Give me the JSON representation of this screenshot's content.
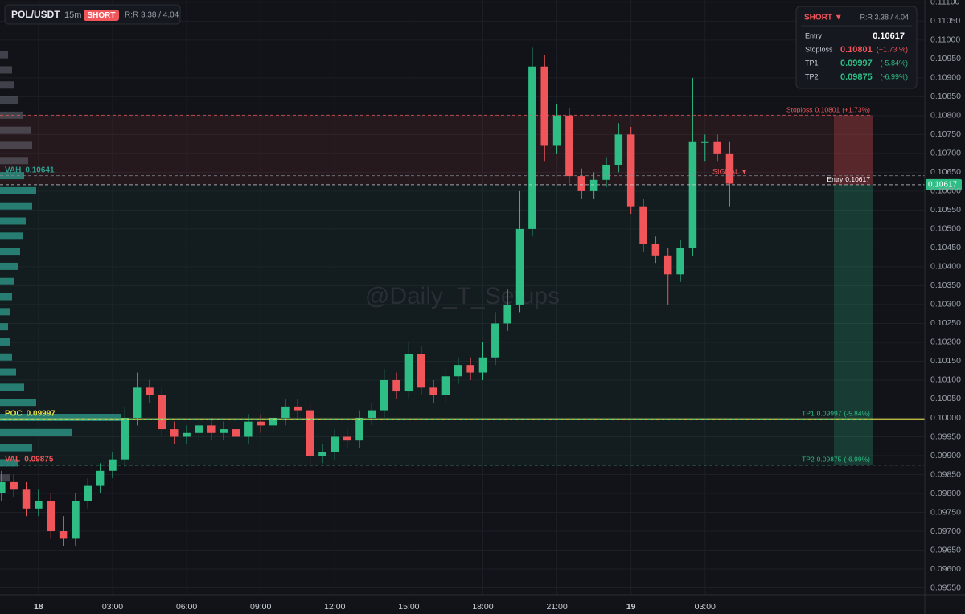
{
  "chart_data": {
    "type": "candlestick",
    "symbol": "POL/USDT",
    "interval": "15m",
    "side": "SHORT",
    "rr": "R:R 3.38 / 4.04",
    "watermark": "@Daily_T_Setups",
    "signal": "SIGNAL ▼",
    "up_color": "#2ebd85",
    "down_color": "#f0555a",
    "x": [
      -1.5,
      -1,
      -0.5,
      0,
      0.5,
      1,
      1.5,
      2,
      2.5,
      3,
      3.5,
      4,
      4.5,
      5,
      5.5,
      6,
      6.5,
      7,
      7.5,
      8,
      8.5,
      9,
      9.5,
      10,
      10.5,
      11,
      11.5,
      12,
      12.5,
      13,
      13.5,
      14,
      14.5,
      15,
      15.5,
      16,
      16.5,
      17,
      17.5,
      18,
      18.5,
      19,
      19.5,
      20,
      20.5,
      21,
      21.5,
      22,
      22.5,
      23,
      23.5,
      24,
      24.5,
      25,
      25.5,
      26,
      26.5,
      27,
      27.5,
      28
    ],
    "open": [
      0.098,
      0.0983,
      0.0981,
      0.0976,
      0.0978,
      0.097,
      0.0968,
      0.0978,
      0.0982,
      0.0986,
      0.0989,
      0.1,
      0.1008,
      0.1006,
      0.0997,
      0.0995,
      0.0996,
      0.0998,
      0.0996,
      0.0997,
      0.0995,
      0.0999,
      0.0998,
      0.1,
      0.1003,
      0.1002,
      0.099,
      0.0991,
      0.0995,
      0.0994,
      0.1,
      0.1002,
      0.101,
      0.1007,
      0.1017,
      0.1008,
      0.1006,
      0.1011,
      0.1014,
      0.1012,
      0.1016,
      0.1025,
      0.103,
      0.105,
      0.1093,
      0.1072,
      0.108,
      0.1064,
      0.106,
      0.1063,
      0.1067,
      0.1075,
      0.1056,
      0.1046,
      0.1043,
      0.1038,
      0.1045,
      0.1073,
      0.1073,
      0.107
    ],
    "high": [
      0.0986,
      0.0985,
      0.0983,
      0.0981,
      0.098,
      0.0974,
      0.098,
      0.0984,
      0.0988,
      0.0991,
      0.1003,
      0.1012,
      0.101,
      0.1008,
      0.0999,
      0.0998,
      0.1,
      0.1,
      0.0999,
      0.0999,
      0.1001,
      0.1001,
      0.1002,
      0.1005,
      0.1005,
      0.1004,
      0.0993,
      0.0997,
      0.0997,
      0.1002,
      0.1004,
      0.1013,
      0.1012,
      0.102,
      0.1019,
      0.101,
      0.1013,
      0.1016,
      0.1016,
      0.102,
      0.1028,
      0.1034,
      0.106,
      0.1098,
      0.1096,
      0.1083,
      0.1082,
      0.1066,
      0.1065,
      0.1069,
      0.1078,
      0.1077,
      0.1058,
      0.1048,
      0.1045,
      0.1047,
      0.109,
      0.1075,
      0.1075,
      0.1073
    ],
    "low": [
      0.0978,
      0.0979,
      0.0974,
      0.0974,
      0.0968,
      0.0966,
      0.0966,
      0.0976,
      0.098,
      0.0984,
      0.0987,
      0.0998,
      0.1004,
      0.0995,
      0.0993,
      0.0993,
      0.0994,
      0.0994,
      0.0994,
      0.0993,
      0.0993,
      0.0996,
      0.0996,
      0.0998,
      0.1,
      0.0987,
      0.0988,
      0.0989,
      0.0992,
      0.0992,
      0.0998,
      0.1,
      0.1005,
      0.1005,
      0.1006,
      0.1004,
      0.1004,
      0.1009,
      0.101,
      0.101,
      0.1014,
      0.1023,
      0.1028,
      0.1048,
      0.1068,
      0.107,
      0.1062,
      0.1058,
      0.1058,
      0.1061,
      0.1065,
      0.1054,
      0.1044,
      0.1041,
      0.103,
      0.1036,
      0.1043,
      0.1068,
      0.1068,
      0.1056
    ],
    "close": [
      0.0983,
      0.0981,
      0.0976,
      0.0978,
      0.097,
      0.0968,
      0.0978,
      0.0982,
      0.0986,
      0.0989,
      0.1,
      0.1008,
      0.1006,
      0.0997,
      0.0995,
      0.0996,
      0.0998,
      0.0996,
      0.0997,
      0.0995,
      0.0999,
      0.0998,
      0.1,
      0.1003,
      0.1002,
      0.099,
      0.0991,
      0.0995,
      0.0994,
      0.1,
      0.1002,
      0.101,
      0.1007,
      0.1017,
      0.1008,
      0.1006,
      0.1011,
      0.1014,
      0.1012,
      0.1016,
      0.1025,
      0.103,
      0.105,
      0.1093,
      0.1072,
      0.108,
      0.1064,
      0.106,
      0.1063,
      0.1067,
      0.1075,
      0.1056,
      0.1046,
      0.1043,
      0.1038,
      0.1045,
      0.1073,
      0.1073,
      0.107,
      0.1062
    ],
    "xlim": [
      -1.56,
      35.9
    ],
    "xticks": [
      {
        "value": 0,
        "label": "18"
      },
      {
        "value": 3,
        "label": "03:00"
      },
      {
        "value": 6,
        "label": "06:00"
      },
      {
        "value": 9,
        "label": "09:00"
      },
      {
        "value": 12,
        "label": "12:00"
      },
      {
        "value": 15,
        "label": "15:00"
      },
      {
        "value": 18,
        "label": "18:00"
      },
      {
        "value": 21,
        "label": "21:00"
      },
      {
        "value": 24,
        "label": "19"
      },
      {
        "value": 27,
        "label": "03:00"
      }
    ],
    "ylim": [
      0.09532,
      0.11106
    ],
    "yticks": [
      {
        "value": 0.0955,
        "label": "0.09550"
      },
      {
        "value": 0.096,
        "label": "0.09600"
      },
      {
        "value": 0.0965,
        "label": "0.09650"
      },
      {
        "value": 0.097,
        "label": "0.09700"
      },
      {
        "value": 0.0975,
        "label": "0.09750"
      },
      {
        "value": 0.098,
        "label": "0.09800"
      },
      {
        "value": 0.0985,
        "label": "0.09850"
      },
      {
        "value": 0.099,
        "label": "0.09900"
      },
      {
        "value": 0.0995,
        "label": "0.09950"
      },
      {
        "value": 0.1,
        "label": "0.10000"
      },
      {
        "value": 0.1005,
        "label": "0.10050"
      },
      {
        "value": 0.101,
        "label": "0.10100"
      },
      {
        "value": 0.1015,
        "label": "0.10150"
      },
      {
        "value": 0.102,
        "label": "0.10200"
      },
      {
        "value": 0.1025,
        "label": "0.10250"
      },
      {
        "value": 0.103,
        "label": "0.10300"
      },
      {
        "value": 0.1035,
        "label": "0.10350"
      },
      {
        "value": 0.104,
        "label": "0.10400"
      },
      {
        "value": 0.1045,
        "label": "0.10450"
      },
      {
        "value": 0.105,
        "label": "0.10500"
      },
      {
        "value": 0.1055,
        "label": "0.10550"
      },
      {
        "value": 0.106,
        "label": "0.10600"
      },
      {
        "value": 0.1065,
        "label": "0.10650"
      },
      {
        "value": 0.107,
        "label": "0.10700"
      },
      {
        "value": 0.1075,
        "label": "0.10750"
      },
      {
        "value": 0.108,
        "label": "0.10800"
      },
      {
        "value": 0.1085,
        "label": "0.10850"
      },
      {
        "value": 0.109,
        "label": "0.10900"
      },
      {
        "value": 0.1095,
        "label": "0.10950"
      },
      {
        "value": 0.11,
        "label": "0.11000"
      },
      {
        "value": 0.1105,
        "label": "0.11050"
      },
      {
        "value": 0.111,
        "label": "0.11100"
      }
    ],
    "grid": true,
    "levels": [
      {
        "name": "VAH",
        "value": 0.10641,
        "color": "#2f9e8f"
      },
      {
        "name": "POC",
        "value": 0.09997,
        "color": "#e5e04a"
      },
      {
        "name": "VAL",
        "value": 0.09875,
        "color": "#f0555a"
      }
    ],
    "trade": [
      {
        "name": "Stoploss",
        "value": 0.10801,
        "change": "(+1.73%)",
        "color": "#f0555a"
      },
      {
        "name": "Entry",
        "value": 0.10617,
        "color": "#ffffff"
      },
      {
        "name": "TP1",
        "value": 0.09997,
        "change": "(-5.84%)",
        "color": "#2ebd85"
      },
      {
        "name": "TP2",
        "value": 0.09875,
        "change": "(-6.99%)",
        "color": "#2ebd85"
      }
    ],
    "volume_profile": {
      "prices": [
        0.1096,
        0.1092,
        0.1088,
        0.1084,
        0.108,
        0.1076,
        0.1072,
        0.1068,
        0.1064,
        0.106,
        0.1056,
        0.1052,
        0.1048,
        0.1044,
        0.104,
        0.1036,
        0.1032,
        0.1028,
        0.1024,
        0.102,
        0.1016,
        0.1012,
        0.1008,
        0.1004,
        0.1,
        0.0996,
        0.0992,
        0.0988,
        0.0984
      ],
      "volumes": [
        10,
        15,
        18,
        22,
        28,
        38,
        40,
        35,
        30,
        45,
        40,
        32,
        28,
        25,
        22,
        18,
        15,
        12,
        10,
        12,
        15,
        20,
        30,
        45,
        150,
        90,
        40,
        22,
        12
      ]
    }
  },
  "panel": {
    "side": "SHORT ▼",
    "rr": "R:R 3.38 / 4.04",
    "rows": [
      {
        "label": "Entry",
        "value": 0.10617
      },
      {
        "label": "Stoploss",
        "value": 0.10801,
        "change": "(+1.73 %)"
      },
      {
        "label": "TP1",
        "value": 0.09997,
        "change": "(-5.84%)"
      },
      {
        "label": "TP2",
        "value": 0.09875,
        "change": "(-6.99%)"
      }
    ]
  }
}
